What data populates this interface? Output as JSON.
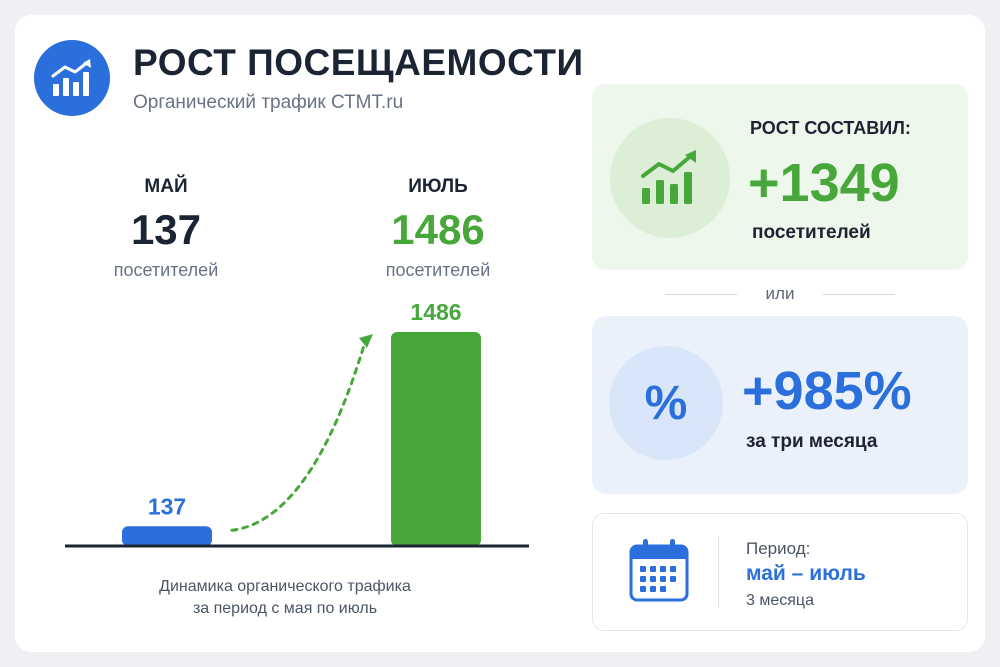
{
  "header": {
    "title": "РОСТ ПОСЕЩАЕМОСТИ",
    "subtitle": "Органический трафик СТМТ.ru",
    "logo_icon": "chart-growth-icon"
  },
  "stats": [
    {
      "month": "МАЙ",
      "value": "137",
      "unit": "посетителей",
      "color": "#1b2433"
    },
    {
      "month": "ИЮЛЬ",
      "value": "1486",
      "unit": "посетителей",
      "color": "#47a73b"
    }
  ],
  "chart_data": {
    "type": "bar",
    "categories": [
      "МАЙ",
      "ИЮЛЬ"
    ],
    "values": [
      137,
      1486
    ],
    "data_labels": [
      "137",
      "1486"
    ],
    "colors": [
      "#2a6fdb",
      "#47a73b"
    ],
    "title": "",
    "xlabel": "",
    "ylabel": "",
    "ylim": [
      0,
      1486
    ],
    "grid": false,
    "legend": "none",
    "annotation": "dashed-arrow-up"
  },
  "caption": {
    "line1": "Динамика органического трафика",
    "line2": "за период с мая по июль"
  },
  "growth": {
    "label": "РОСТ СОСТАВИЛ:",
    "value": "+1349",
    "unit": "посетителей",
    "icon": "chart-growth-icon",
    "accent": "#47a73b"
  },
  "separator": {
    "text": "или"
  },
  "percent": {
    "symbol": "%",
    "value": "+985%",
    "unit": "за три месяца",
    "accent": "#2a6fdb"
  },
  "period": {
    "label": "Период:",
    "value": "май – июль",
    "duration": "3 месяца",
    "icon": "calendar-icon"
  }
}
